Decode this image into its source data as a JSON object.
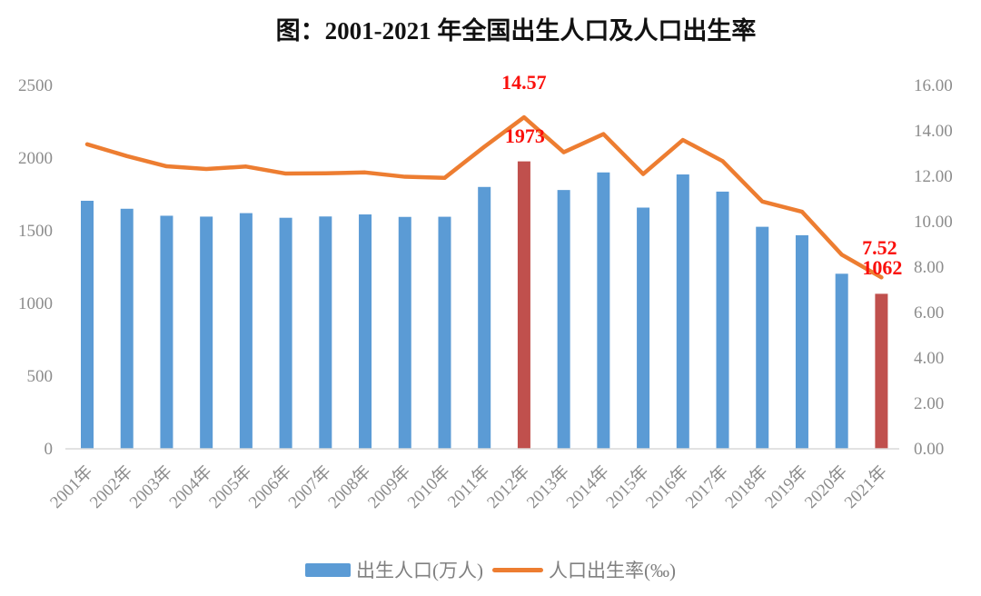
{
  "colors": {
    "bar_blue": "#5B9BD5",
    "bar_highlight_red": "#C0504D",
    "line_orange": "#ED7D31",
    "annotation_red": "#FA100C",
    "axis_text": "#8C8C8C",
    "axis_line": "#D9D9D9",
    "title_text": "#111111",
    "legend_text": "#808080"
  },
  "chart_data": {
    "type": "bar+line",
    "title": "图：2001-2021 年全国出生人口及人口出生率",
    "categories": [
      "2001年",
      "2002年",
      "2003年",
      "2004年",
      "2005年",
      "2006年",
      "2007年",
      "2008年",
      "2009年",
      "2010年",
      "2011年",
      "2012年",
      "2013年",
      "2014年",
      "2015年",
      "2016年",
      "2017年",
      "2018年",
      "2019年",
      "2020年",
      "2021年"
    ],
    "series": [
      {
        "name": "出生人口(万人)",
        "kind": "bar",
        "axis": "left",
        "values": [
          1702,
          1647,
          1599,
          1593,
          1617,
          1585,
          1594,
          1608,
          1591,
          1592,
          1797,
          1973,
          1776,
          1897,
          1655,
          1883,
          1765,
          1523,
          1465,
          1200,
          1062
        ],
        "highlighted_indices": [
          11,
          20
        ]
      },
      {
        "name": "人口出生率(‰)",
        "kind": "line",
        "axis": "right",
        "values": [
          13.38,
          12.86,
          12.41,
          12.29,
          12.4,
          12.09,
          12.1,
          12.14,
          11.95,
          11.9,
          13.27,
          14.57,
          13.03,
          13.83,
          12.07,
          13.57,
          12.64,
          10.86,
          10.41,
          8.52,
          7.52
        ]
      }
    ],
    "left_axis": {
      "min": 0,
      "max": 2500,
      "ticks": [
        "2500",
        "2000",
        "1500",
        "1000",
        "500",
        "0"
      ]
    },
    "right_axis": {
      "min": 0,
      "max": 16,
      "ticks": [
        "16.00",
        "14.00",
        "12.00",
        "10.00",
        "8.00",
        "6.00",
        "4.00",
        "2.00",
        "0.00"
      ]
    },
    "annotations": [
      {
        "text": "14.57",
        "series": "人口出生率(‰)",
        "category": "2012年"
      },
      {
        "text": "1973",
        "series": "出生人口(万人)",
        "category": "2012年"
      },
      {
        "text": "7.52",
        "series": "人口出生率(‰)",
        "category": "2021年"
      },
      {
        "text": "1062",
        "series": "出生人口(万人)",
        "category": "2021年"
      }
    ],
    "grid": false,
    "legend_position": "bottom"
  }
}
